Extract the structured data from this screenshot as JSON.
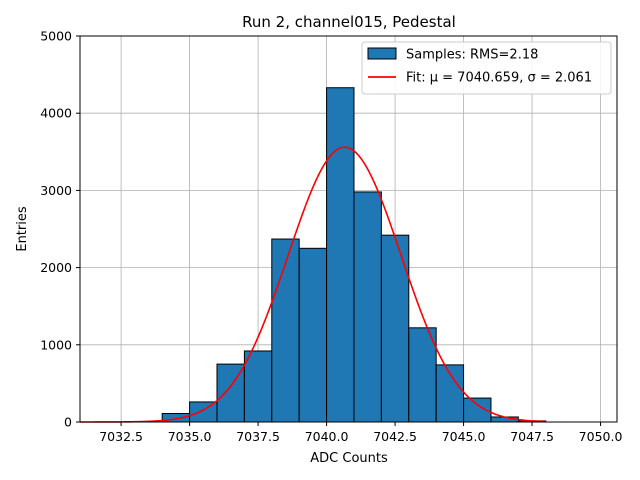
{
  "chart_data": {
    "type": "bar",
    "title": "Run 2, channel015, Pedestal",
    "xlabel": "ADC Counts",
    "ylabel": "Entries",
    "xlim": [
      7031.0,
      7050.6
    ],
    "ylim": [
      0,
      5000
    ],
    "grid": true,
    "legend_position": "top-right",
    "x_ticks": [
      "7032.5",
      "7035.0",
      "7037.5",
      "7040.0",
      "7042.5",
      "7045.0",
      "7047.5",
      "7050.0"
    ],
    "x_tick_values": [
      7032.5,
      7035.0,
      7037.5,
      7040.0,
      7042.5,
      7045.0,
      7047.5,
      7050.0
    ],
    "y_ticks": [
      "0",
      "1000",
      "2000",
      "3000",
      "4000",
      "5000"
    ],
    "y_tick_values": [
      0,
      1000,
      2000,
      3000,
      4000,
      5000
    ],
    "bin_width": 1,
    "bins": [
      {
        "x_start": 7034,
        "value": 110
      },
      {
        "x_start": 7035,
        "value": 260
      },
      {
        "x_start": 7036,
        "value": 750
      },
      {
        "x_start": 7037,
        "value": 920
      },
      {
        "x_start": 7038,
        "value": 2370
      },
      {
        "x_start": 7039,
        "value": 2250
      },
      {
        "x_start": 7040,
        "value": 4330
      },
      {
        "x_start": 7041,
        "value": 2980
      },
      {
        "x_start": 7042,
        "value": 2420
      },
      {
        "x_start": 7043,
        "value": 1220
      },
      {
        "x_start": 7044,
        "value": 740
      },
      {
        "x_start": 7045,
        "value": 310
      },
      {
        "x_start": 7046,
        "value": 65
      },
      {
        "x_start": 7047,
        "value": 15
      }
    ],
    "series": [
      {
        "name": "Samples: RMS=2.18",
        "kind": "histogram",
        "color": "#1f77b4",
        "edge_color": "#000000"
      },
      {
        "name": "Fit: μ = 7040.659, σ = 2.061",
        "kind": "gaussian-fit",
        "color": "#ff0000",
        "mu": 7040.659,
        "sigma": 2.061,
        "amplitude": 3560,
        "x_range": [
          7031.0,
          7048.0
        ]
      }
    ]
  }
}
